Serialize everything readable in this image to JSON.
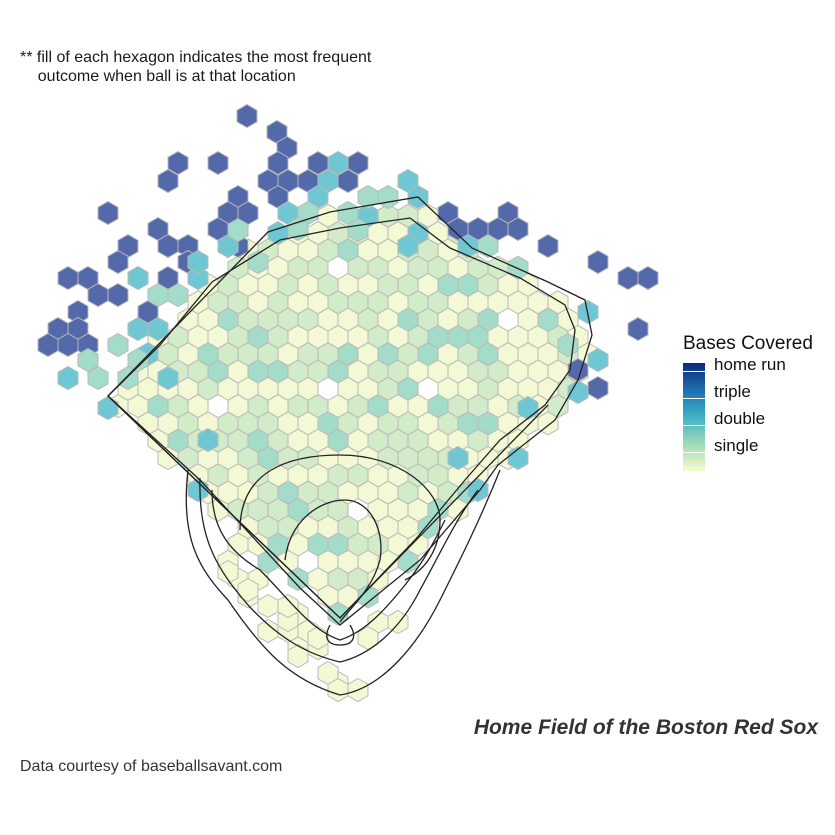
{
  "note": "** fill of each hexagon indicates the most frequent\n    outcome when ball is at that location",
  "chart_data": {
    "type": "heatmap",
    "geometry": "hexbin",
    "title": "Home Field of the Boston Red Sox",
    "caption": "Data courtesy of baseballsavant.com",
    "legend": {
      "title": "Bases Covered",
      "placement": "right",
      "labels": [
        "home run",
        "triple",
        "double",
        "single"
      ],
      "levels": [
        4,
        3,
        2,
        1
      ]
    },
    "colors": {
      "home_run": "#5469aa",
      "triple": "#3c8ec4",
      "double": "#6fc7d3",
      "double_light": "#a3dcc9",
      "single": "#d2ecc9",
      "single_light": "#f4f9d5",
      "hex_stroke": "#b9b9b9",
      "field_line": "#222222"
    }
  }
}
